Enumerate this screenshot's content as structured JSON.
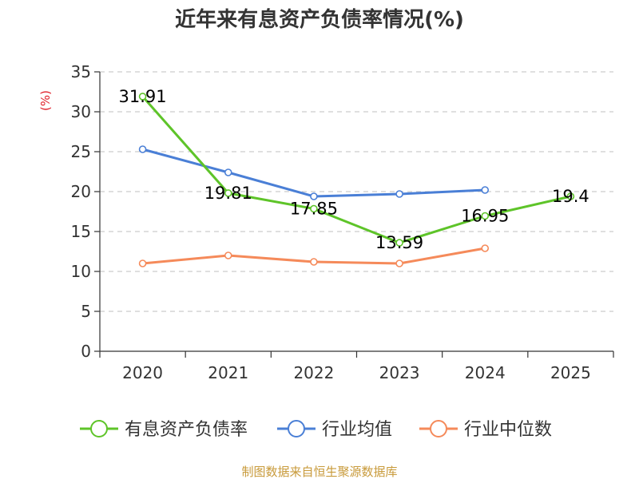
{
  "chart_data": {
    "type": "line",
    "title": "近年来有息资产负债率情况(%)",
    "ylabel": "(%)",
    "xlabel": "",
    "ylim": [
      0,
      35
    ],
    "yticks": [
      0,
      5,
      10,
      15,
      20,
      25,
      30,
      35
    ],
    "categories": [
      "2020",
      "2021",
      "2022",
      "2023",
      "2024",
      "2025"
    ],
    "grid": true,
    "legend_position": "bottom",
    "series": [
      {
        "name": "有息资产负债率",
        "color": "#5ec429",
        "values": [
          31.91,
          19.81,
          17.85,
          13.59,
          16.95,
          19.4
        ],
        "data_labels": [
          "31.91",
          "19.81",
          "17.85",
          "13.59",
          "16.95",
          "19.4"
        ]
      },
      {
        "name": "行业均值",
        "color": "#4a7fd6",
        "values": [
          25.3,
          22.4,
          19.4,
          19.7,
          20.2,
          null
        ]
      },
      {
        "name": "行业中位数",
        "color": "#f58a5a",
        "values": [
          11.0,
          12.0,
          11.2,
          11.0,
          12.9,
          null
        ]
      }
    ]
  },
  "footer": {
    "source": "制图数据来自恒生聚源数据库",
    "color": "#c89a3a"
  },
  "colors": {
    "axis": "#333333",
    "grid": "#cccccc",
    "unit_label": "#e0202a"
  }
}
